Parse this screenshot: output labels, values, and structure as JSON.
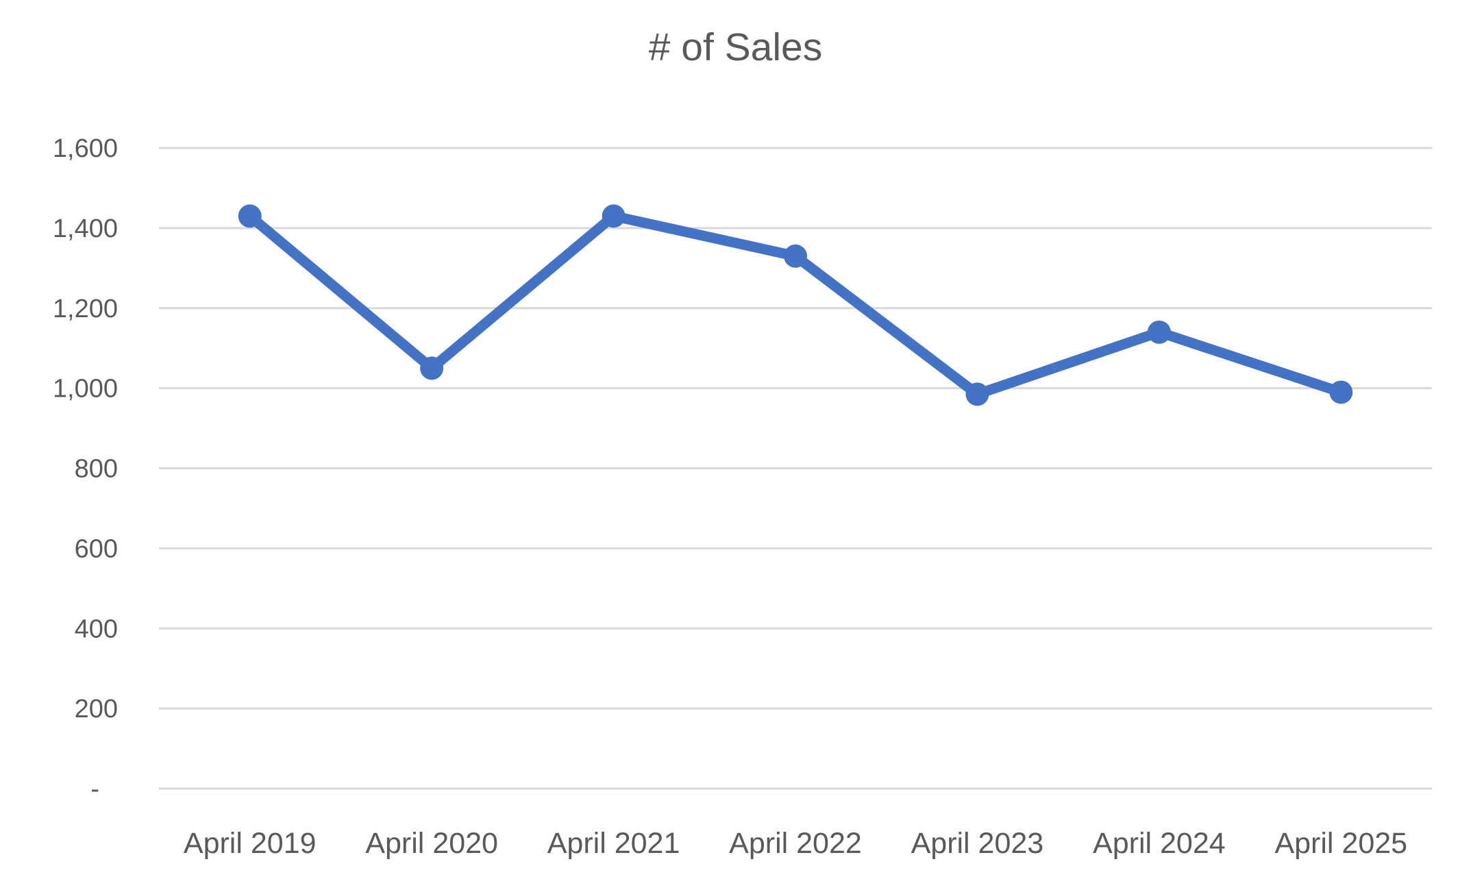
{
  "chart_data": {
    "type": "line",
    "title": "# of Sales",
    "categories": [
      "April 2019",
      "April 2020",
      "April 2021",
      "April 2022",
      "April 2023",
      "April 2024",
      "April 2025"
    ],
    "series": [
      {
        "name": "# of Sales",
        "values": [
          1430,
          1050,
          1430,
          1330,
          985,
          1140,
          990
        ]
      }
    ],
    "xlabel": "",
    "ylabel": "",
    "ylim": [
      0,
      1600
    ],
    "ytick_step": 200,
    "ytick_labels": [
      "-",
      "200",
      "400",
      "600",
      "800",
      "1,000",
      "1,200",
      "1,400",
      "1,600"
    ],
    "grid": true,
    "legend": false,
    "colors": {
      "line": "#4472C4",
      "marker": "#4472C4",
      "gridline": "#D9D9D9",
      "text": "#595959",
      "background": "#FFFFFF"
    }
  }
}
